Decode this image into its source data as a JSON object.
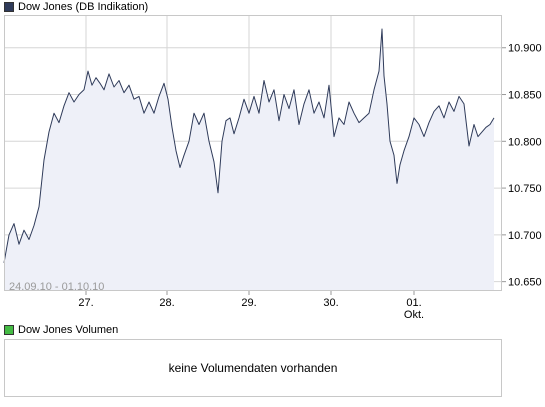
{
  "legend": {
    "series_label": "Dow Jones (DB Indikation)",
    "series_color": "#2f3b5a",
    "volume_label": "Dow Jones Volumen",
    "volume_color": "#44bb44"
  },
  "date_range": "24.09.10 - 01.10.10",
  "volume": {
    "message": "keine Volumendaten vorhanden"
  },
  "colors": {
    "line": "#2f3b5a",
    "fill": "#eef0f8",
    "grid": "#d6d6d6",
    "frame": "#c8c8c8"
  },
  "chart_data": {
    "type": "line",
    "ylim": [
      10640,
      10935
    ],
    "xlim": [
      0,
      490
    ],
    "yticks": [
      {
        "value": 10650,
        "label": "10.650"
      },
      {
        "value": 10700,
        "label": "10.700"
      },
      {
        "value": 10750,
        "label": "10.750"
      },
      {
        "value": 10800,
        "label": "10.800"
      },
      {
        "value": 10850,
        "label": "10.850"
      },
      {
        "value": 10900,
        "label": "10.900"
      }
    ],
    "xticks": [
      {
        "value": 82,
        "label": "27."
      },
      {
        "value": 163,
        "label": "28."
      },
      {
        "value": 245,
        "label": "29."
      },
      {
        "value": 327,
        "label": "30."
      },
      {
        "value": 410,
        "label": "01.",
        "sublabel": "Okt."
      }
    ],
    "series": [
      {
        "x": [
          0,
          5,
          10,
          15,
          20,
          25,
          30,
          35,
          40,
          45,
          50,
          55,
          60,
          65,
          70,
          75,
          80,
          84,
          88,
          92,
          96,
          100,
          105,
          110,
          115,
          120,
          125,
          130,
          135,
          140,
          145,
          150,
          155,
          160,
          164,
          168,
          172,
          176,
          180,
          185,
          190,
          195,
          200,
          205,
          210,
          214,
          218,
          222,
          226,
          230,
          235,
          240,
          245,
          250,
          255,
          260,
          265,
          270,
          275,
          280,
          285,
          290,
          295,
          300,
          305,
          310,
          315,
          320,
          325,
          330,
          335,
          340,
          345,
          350,
          355,
          360,
          365,
          370,
          375,
          378,
          380,
          383,
          386,
          390,
          393,
          396,
          400,
          405,
          410,
          415,
          420,
          425,
          430,
          435,
          440,
          445,
          450,
          455,
          460,
          465,
          470,
          474,
          478,
          482,
          486,
          490
        ],
        "values": [
          10670,
          10700,
          10712,
          10690,
          10705,
          10695,
          10710,
          10730,
          10780,
          10810,
          10830,
          10820,
          10838,
          10852,
          10842,
          10850,
          10855,
          10875,
          10860,
          10868,
          10862,
          10855,
          10872,
          10858,
          10865,
          10852,
          10860,
          10845,
          10848,
          10830,
          10842,
          10830,
          10848,
          10862,
          10845,
          10815,
          10790,
          10772,
          10785,
          10800,
          10830,
          10818,
          10830,
          10800,
          10778,
          10745,
          10800,
          10822,
          10825,
          10808,
          10825,
          10845,
          10830,
          10848,
          10830,
          10865,
          10842,
          10855,
          10822,
          10850,
          10835,
          10855,
          10818,
          10840,
          10855,
          10830,
          10842,
          10825,
          10860,
          10805,
          10825,
          10818,
          10842,
          10830,
          10820,
          10825,
          10830,
          10855,
          10875,
          10920,
          10870,
          10840,
          10800,
          10785,
          10755,
          10775,
          10790,
          10805,
          10825,
          10818,
          10805,
          10820,
          10832,
          10838,
          10825,
          10842,
          10832,
          10848,
          10840,
          10795,
          10818,
          10805,
          10810,
          10815,
          10818,
          10825
        ]
      }
    ]
  }
}
